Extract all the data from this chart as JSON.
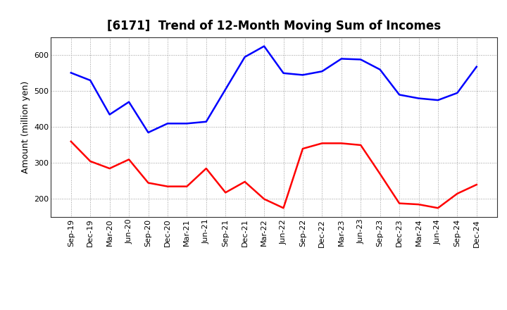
{
  "title": "[6171]  Trend of 12-Month Moving Sum of Incomes",
  "ylabel": "Amount (million yen)",
  "x_labels": [
    "Sep-19",
    "Dec-19",
    "Mar-20",
    "Jun-20",
    "Sep-20",
    "Dec-20",
    "Mar-21",
    "Jun-21",
    "Sep-21",
    "Dec-21",
    "Mar-22",
    "Jun-22",
    "Sep-22",
    "Dec-22",
    "Mar-23",
    "Jun-23",
    "Sep-23",
    "Dec-23",
    "Mar-24",
    "Jun-24",
    "Sep-24",
    "Dec-24"
  ],
  "ordinary_income": [
    551,
    530,
    435,
    470,
    385,
    410,
    410,
    415,
    505,
    595,
    625,
    550,
    545,
    555,
    590,
    588,
    560,
    490,
    480,
    475,
    495,
    568
  ],
  "net_income": [
    360,
    305,
    285,
    310,
    245,
    235,
    235,
    285,
    218,
    248,
    200,
    175,
    340,
    355,
    355,
    350,
    270,
    188,
    185,
    175,
    215,
    240
  ],
  "ordinary_color": "#0000ff",
  "net_color": "#ff0000",
  "ylim_min": 150,
  "ylim_max": 650,
  "yticks": [
    200,
    300,
    400,
    500,
    600
  ],
  "grid_color": "#999999",
  "bg_color": "#ffffff",
  "title_fontsize": 12,
  "axis_fontsize": 9,
  "tick_fontsize": 8,
  "line_width": 1.8
}
